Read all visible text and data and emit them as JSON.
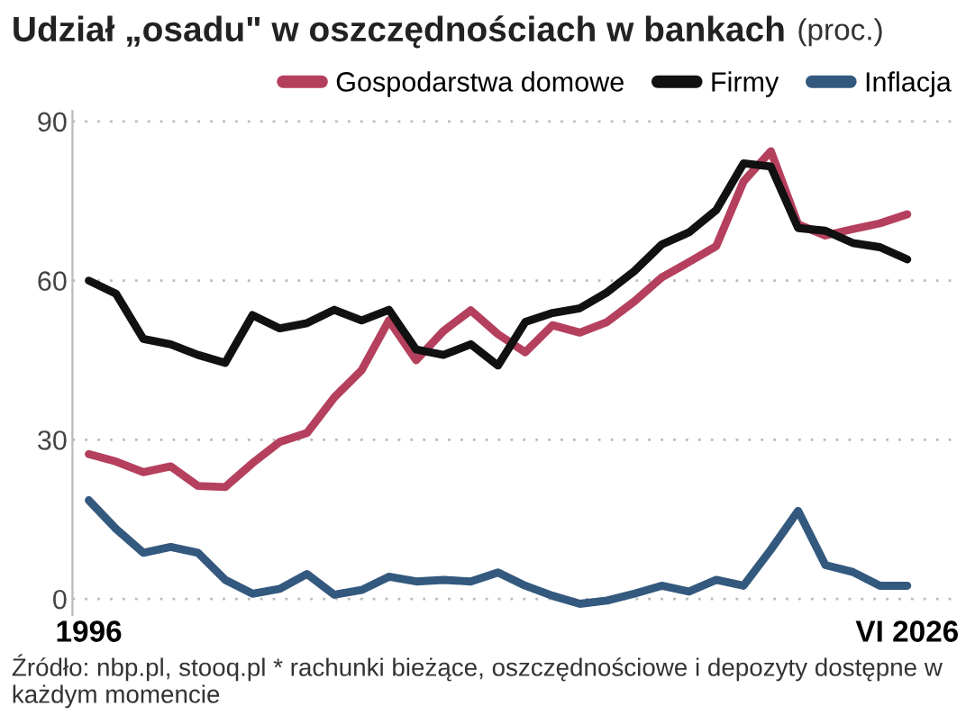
{
  "chart_data": {
    "type": "line",
    "title": "Udział „osadu\" w oszczędnościach w bankach",
    "subtitle": "(proc.)",
    "categories": [
      "1996",
      null,
      null,
      null,
      null,
      null,
      null,
      null,
      null,
      null,
      null,
      null,
      null,
      null,
      null,
      null,
      null,
      null,
      null,
      null,
      null,
      null,
      null,
      null,
      null,
      null,
      null,
      null,
      null,
      null,
      "VI 2026"
    ],
    "series": [
      {
        "name": "Gospodarstwa domowe",
        "color": "#b5405e",
        "values": [
          27.3,
          25.9,
          23.9,
          25,
          21.3,
          21.1,
          25.6,
          29.6,
          31.3,
          38,
          43.1,
          52.5,
          45,
          50.5,
          54.4,
          49.9,
          46.5,
          51.6,
          50.2,
          52.2,
          56.1,
          60.6,
          63.5,
          66.5,
          78.7,
          84.4,
          70.6,
          68.5,
          69.7,
          70.8,
          72.5
        ]
      },
      {
        "name": "Firmy",
        "color": "#111111",
        "values": [
          60,
          57.5,
          49,
          48,
          46,
          44.5,
          53.5,
          51,
          52,
          54.5,
          52.5,
          54.5,
          47,
          46,
          48,
          44,
          52.2,
          53.9,
          54.8,
          57.8,
          61.8,
          66.8,
          69.1,
          73.3,
          82.1,
          81.5,
          69.9,
          69.4,
          67.1,
          66.3,
          64
        ]
      },
      {
        "name": "Inflacja",
        "color": "#34597e",
        "values": [
          18.6,
          13.2,
          8.7,
          9.8,
          8.7,
          3.6,
          1,
          1.9,
          4.7,
          0.8,
          1.7,
          4.2,
          3.3,
          3.6,
          3.3,
          5,
          2.5,
          0.6,
          -0.9,
          -0.3,
          1,
          2.5,
          1.4,
          3.6,
          2.5,
          9.3,
          16.6,
          6.4,
          5.1,
          2.5,
          2.5
        ]
      }
    ],
    "ylim": [
      -3,
      92
    ],
    "yticks": [
      0,
      30,
      60,
      90
    ],
    "grid": "y",
    "legend": "top right",
    "line_style": "solid",
    "marker": "none",
    "annotations": [
      "Źródło: nbp.pl, stooq.pl * rachunki bieżące, oszczędnościowe i depozyty dostępne w każdym momencie"
    ]
  }
}
